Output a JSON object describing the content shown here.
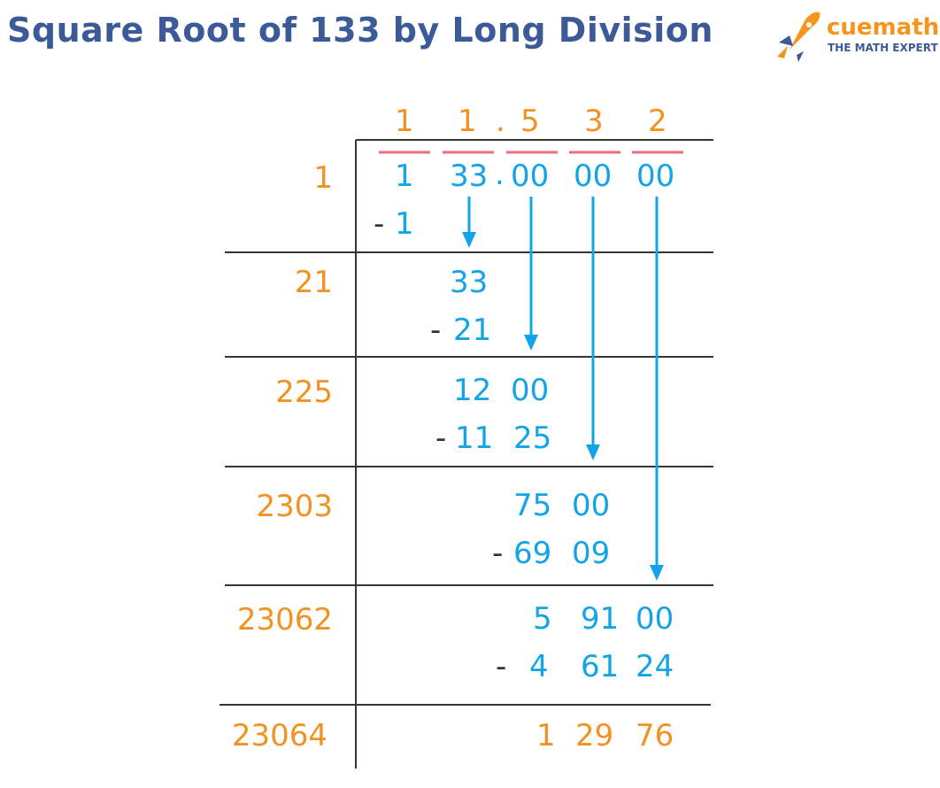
{
  "title": "Square Root of 133 by Long Division",
  "brand": {
    "name": "cuemath",
    "tagline": "THE MATH EXPERT",
    "icon": "rocket-icon"
  },
  "colors": {
    "title": "#3d5a98",
    "quotient": "#f29222",
    "work": "#12a4e6",
    "pair_bar": "#f06d7f",
    "lines": "#2e3a2e",
    "minus": "#333333"
  },
  "quotient": [
    "1",
    "1",
    ".",
    "5",
    "3",
    "2"
  ],
  "dividend": {
    "pairs": [
      "1",
      "33",
      "00",
      "00",
      "00"
    ],
    "decimal": "."
  },
  "divisors": [
    "1",
    "21",
    "225",
    "2303",
    "23062",
    "23064"
  ],
  "steps": [
    {
      "subtract": {
        "sign": "-",
        "value": "1"
      }
    },
    {
      "remainder": "33",
      "subtract": {
        "sign": "-",
        "value": "21"
      }
    },
    {
      "remainder": [
        "12",
        "00"
      ],
      "subtract": {
        "sign": "-",
        "value": [
          "11",
          "25"
        ]
      }
    },
    {
      "remainder": [
        "75",
        "00"
      ],
      "subtract": {
        "sign": "-",
        "value": [
          "69",
          "09"
        ]
      }
    },
    {
      "remainder": [
        "5",
        "91",
        "00"
      ],
      "subtract": {
        "sign": "-",
        "value": [
          "4",
          "61",
          "24"
        ]
      }
    },
    {
      "remainder": [
        "1",
        "29",
        "76"
      ]
    }
  ]
}
